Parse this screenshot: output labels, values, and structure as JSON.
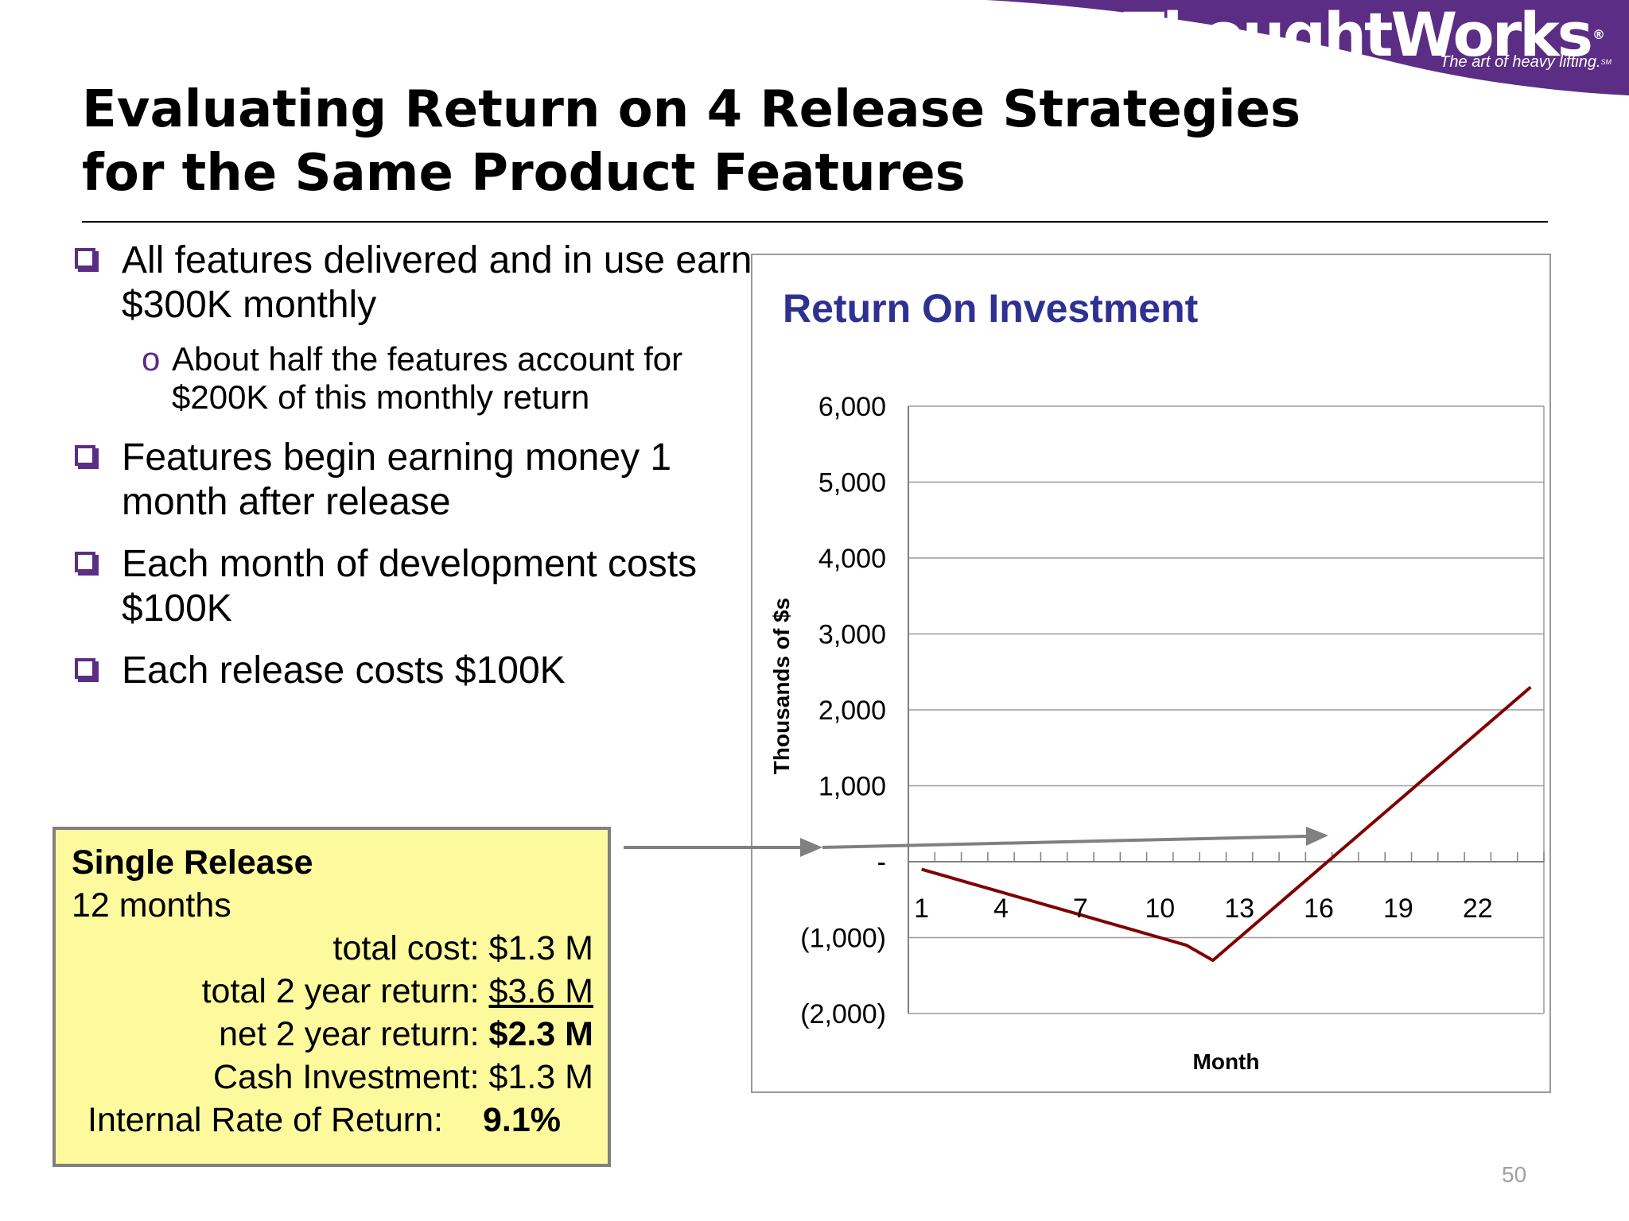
{
  "logo": {
    "brand": "ThoughtWorks",
    "registered": "®",
    "tagline": "The art of heavy lifting.",
    "service_mark": "SM",
    "band_color": "#5b2d84"
  },
  "slide": {
    "title_line1": "Evaluating Return on 4 Release Strategies",
    "title_line2": "for the Same Product Features",
    "page_number": "50",
    "bullet_color": "#5b2d84"
  },
  "bullets": [
    {
      "text": "All features delivered and in use earn $300K monthly",
      "sub": {
        "marker": "o",
        "text": "About half the features account for $200K of this monthly return"
      }
    },
    {
      "text": "Features begin earning money 1 month after release"
    },
    {
      "text": "Each month of development costs $100K"
    },
    {
      "text": "Each release costs $100K"
    }
  ],
  "summary": {
    "heading": "Single Release",
    "duration": "12 months",
    "total_cost_label": "total cost:",
    "total_cost_value": "$1.3 M",
    "return_label": "total 2 year return:",
    "return_value": "$3.6 M",
    "net_label": "net 2 year return:",
    "net_value": "$2.3 M",
    "cash_label": "Cash Investment:",
    "cash_value": "$1.3 M",
    "irr_label": "Internal Rate of Return:",
    "irr_value": "9.1%",
    "box_color": "#fcfa9c"
  },
  "chart_data": {
    "type": "line",
    "title": "Return On Investment",
    "xlabel": "Month",
    "ylabel": "Thousands of $s",
    "x_ticks": [
      "1",
      "4",
      "7",
      "10",
      "13",
      "16",
      "19",
      "22"
    ],
    "y_ticks": [
      "6,000",
      "5,000",
      "4,000",
      "3,000",
      "2,000",
      "1,000",
      "-",
      "(1,000)",
      "(2,000)"
    ],
    "ylim": [
      -2000,
      6000
    ],
    "xlim": [
      0.5,
      24.5
    ],
    "grid": true,
    "series": [
      {
        "color": "#800000",
        "x": [
          1,
          2,
          3,
          4,
          5,
          6,
          7,
          8,
          9,
          10,
          11,
          12,
          13,
          14,
          15,
          16,
          17,
          18,
          19,
          20,
          21,
          22,
          23,
          24
        ],
        "y": [
          -100,
          -200,
          -300,
          -400,
          -500,
          -600,
          -700,
          -800,
          -900,
          -1000,
          -1100,
          -1300,
          -1000,
          -700,
          -400,
          -100,
          200,
          500,
          800,
          1100,
          1400,
          1700,
          2000,
          2300
        ]
      }
    ],
    "title_color": "#2e3192",
    "connector_arrow_color": "#808080"
  }
}
